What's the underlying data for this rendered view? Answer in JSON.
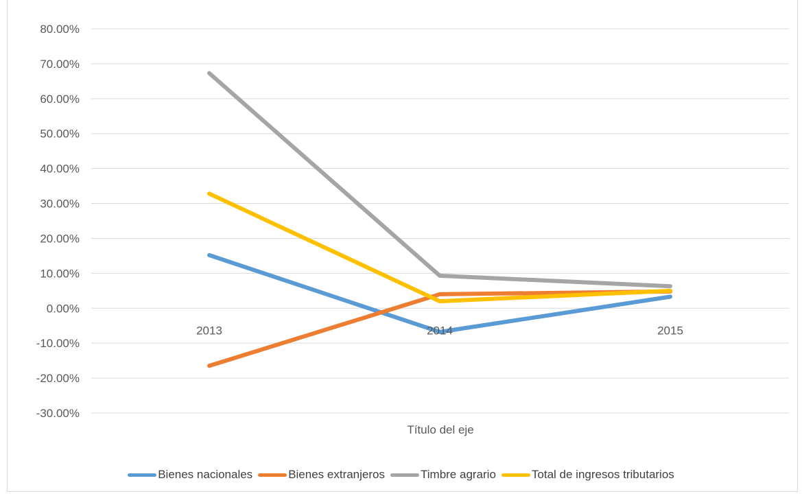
{
  "chart_data": {
    "type": "line",
    "title": "",
    "xlabel": "Título del eje",
    "ylabel": "",
    "categories": [
      "2013",
      "2014",
      "2015"
    ],
    "ylim": [
      -0.3,
      0.8
    ],
    "yticks": [
      0.8,
      0.7,
      0.6,
      0.5,
      0.4,
      0.3,
      0.2,
      0.1,
      0.0,
      -0.1,
      -0.2,
      -0.3
    ],
    "ytick_labels": [
      "80.00%",
      "70.00%",
      "60.00%",
      "50.00%",
      "40.00%",
      "30.00%",
      "20.00%",
      "10.00%",
      "0.00%",
      "-10.00%",
      "-20.00%",
      "-30.00%"
    ],
    "grid": true,
    "legend_position": "bottom",
    "series": [
      {
        "name": "Bienes nacionales",
        "color": "#5b9bd5",
        "values": [
          0.152,
          -0.068,
          0.033
        ]
      },
      {
        "name": "Bienes extranjeros",
        "color": "#ed7d31",
        "values": [
          -0.165,
          0.04,
          0.048
        ]
      },
      {
        "name": "Timbre agrario",
        "color": "#a5a5a5",
        "values": [
          0.673,
          0.093,
          0.063
        ]
      },
      {
        "name": "Total de ingresos tributarios",
        "color": "#ffc000",
        "values": [
          0.328,
          0.02,
          0.05
        ]
      }
    ]
  }
}
